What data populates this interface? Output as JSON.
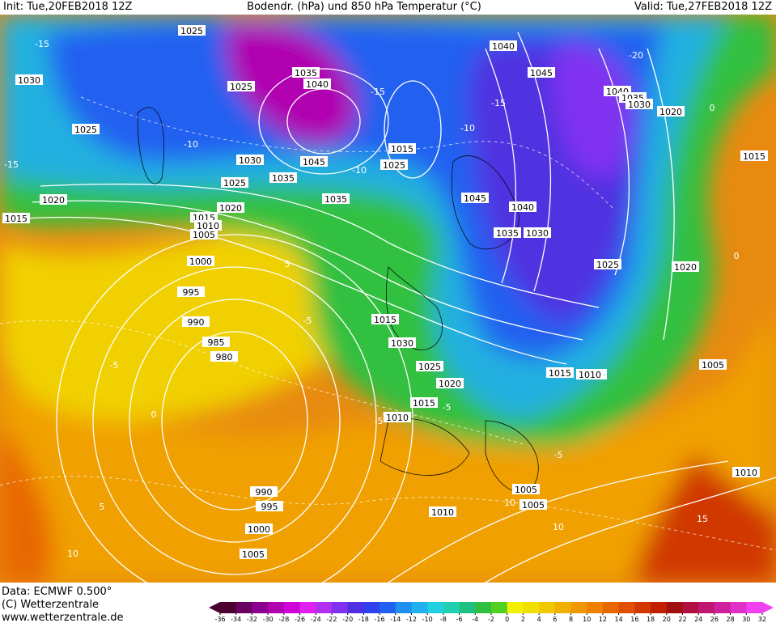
{
  "header": {
    "init": "Init: Tue,20FEB2018 12Z",
    "title": "Bodendr. (hPa) und 850 hPa Temperatur (°C)",
    "valid": "Valid: Tue,27FEB2018 12Z"
  },
  "footer": {
    "data": "Data: ECMWF   0.500°",
    "copyright": "(C) Wetterzentrale",
    "url": "www.wetterzentrale.de"
  },
  "colorbar": {
    "ticks": [
      -36,
      -34,
      -32,
      -30,
      -28,
      -26,
      -24,
      -22,
      -20,
      -18,
      -16,
      -14,
      -12,
      -10,
      -8,
      -6,
      -4,
      -2,
      0,
      2,
      4,
      6,
      8,
      10,
      12,
      14,
      16,
      18,
      20,
      22,
      24,
      26,
      28,
      30,
      32
    ],
    "colors": [
      "#4b0030",
      "#6a0060",
      "#8b0090",
      "#b000b0",
      "#d000d8",
      "#e020f0",
      "#b030f0",
      "#8030f0",
      "#5030e0",
      "#3040f0",
      "#2060f0",
      "#2090f0",
      "#20b0f0",
      "#20d0e0",
      "#20d0b0",
      "#20c080",
      "#30c040",
      "#50d020",
      "#f0f000",
      "#f0e000",
      "#f0c800",
      "#f0b000",
      "#f09800",
      "#f08000",
      "#e86800",
      "#e05000",
      "#d03800",
      "#c02000",
      "#a01010",
      "#b01040",
      "#c01870",
      "#d020a0",
      "#e030c8",
      "#f040f0"
    ]
  },
  "isobar_labels": [
    "1025",
    "1030",
    "1025",
    "1025",
    "1020",
    "1015",
    "1035",
    "1040",
    "1025",
    "1030",
    "1035",
    "1045",
    "1025",
    "1020",
    "1015",
    "1010",
    "1005",
    "1000",
    "995",
    "990",
    "985",
    "980",
    "1035",
    "1015",
    "1025",
    "1040",
    "1045",
    "1040",
    "1035",
    "1030",
    "1020",
    "1015",
    "1045",
    "1040",
    "1035",
    "1030",
    "1025",
    "1020",
    "1015",
    "1030",
    "1025",
    "1020",
    "1015",
    "1010",
    "1015",
    "1010",
    "1005",
    "1010",
    "990",
    "995",
    "1000",
    "1005",
    "1005",
    "1005",
    "1010",
    "1010"
  ],
  "temperature_labels": [
    "-15",
    "-15",
    "-10",
    "-15",
    "-10",
    "-5",
    "-5",
    "0",
    "5",
    "-5",
    "-5",
    "5",
    "-5",
    "10",
    "0",
    "5",
    "10",
    "-10",
    "0",
    "-20",
    "-15",
    "15",
    "10"
  ]
}
